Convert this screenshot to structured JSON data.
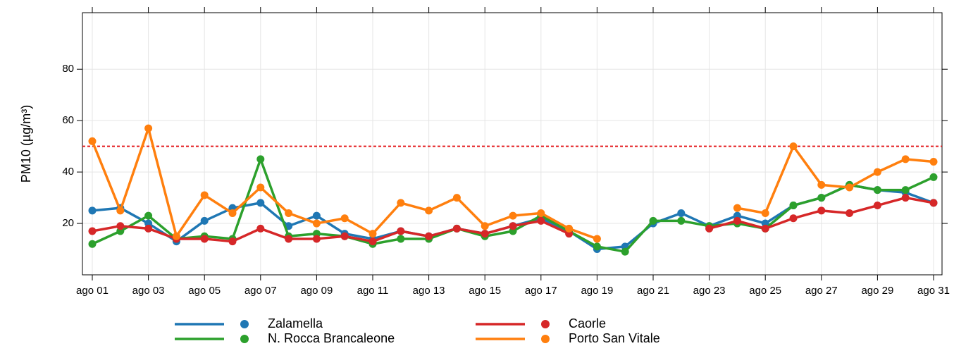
{
  "chart_data": {
    "type": "line",
    "y_label": "PM10 (µg/m³)",
    "categories": [
      "ago 01",
      null,
      "ago 03",
      null,
      "ago 05",
      null,
      "ago 07",
      null,
      "ago 09",
      null,
      "ago 11",
      null,
      "ago 13",
      null,
      "ago 15",
      null,
      "ago 17",
      null,
      "ago 19",
      null,
      "ago 21",
      null,
      "ago 23",
      null,
      "ago 25",
      null,
      "ago 27",
      null,
      "ago 29",
      null,
      "ago 31"
    ],
    "series": [
      {
        "name": "Zalamella",
        "color": "#1f77b4",
        "values": [
          25,
          26,
          20,
          13,
          21,
          26,
          28,
          19,
          23,
          16,
          14,
          17,
          15,
          18,
          16,
          19,
          22,
          17,
          10,
          11,
          20,
          24,
          19,
          23,
          20,
          27,
          30,
          35,
          33,
          32,
          28
        ]
      },
      {
        "name": "N. Rocca Brancaleone",
        "color": "#2ca02c",
        "values": [
          12,
          17,
          23,
          14,
          15,
          14,
          45,
          15,
          16,
          15,
          12,
          14,
          14,
          18,
          15,
          17,
          23,
          17,
          11,
          9,
          21,
          21,
          19,
          20,
          18,
          27,
          30,
          35,
          33,
          33,
          38
        ]
      },
      {
        "name": "Caorle",
        "color": "#d62728",
        "values": [
          17,
          19,
          18,
          14,
          14,
          13,
          18,
          14,
          14,
          15,
          13,
          17,
          15,
          18,
          16,
          19,
          21,
          16,
          null,
          null,
          null,
          null,
          18,
          21,
          18,
          22,
          25,
          24,
          27,
          30,
          28
        ]
      },
      {
        "name": "Porto San Vitale",
        "color": "#ff7f0e",
        "values": [
          52,
          25,
          57,
          15,
          31,
          24,
          34,
          24,
          20,
          22,
          16,
          28,
          25,
          30,
          19,
          23,
          24,
          18,
          14,
          null,
          null,
          null,
          null,
          26,
          24,
          50,
          35,
          34,
          40,
          45,
          44
        ]
      }
    ],
    "ylim": [
      0,
      102
    ],
    "yticks": [
      20,
      40,
      60,
      80
    ],
    "threshold": 50,
    "threshold_color": "#e41a1c",
    "grid": true
  }
}
